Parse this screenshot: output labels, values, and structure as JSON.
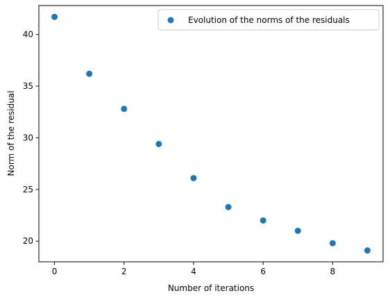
{
  "chart_data": {
    "type": "scatter",
    "xlabel": "Number of iterations",
    "ylabel": "Norm of the residual",
    "xlim": [
      -0.45,
      9.45
    ],
    "ylim": [
      18.0,
      42.8
    ],
    "x_ticks": [
      0,
      2,
      4,
      6,
      8
    ],
    "y_ticks": [
      20,
      25,
      30,
      35,
      40
    ],
    "grid": false,
    "legend_position": "top-right",
    "series": [
      {
        "name": "Evolution of the norms of the residuals",
        "color": "#1f77b4",
        "marker": "circle",
        "x": [
          0,
          1,
          2,
          3,
          4,
          5,
          6,
          7,
          8,
          9
        ],
        "y": [
          41.7,
          36.2,
          32.8,
          29.4,
          26.1,
          23.3,
          22.0,
          21.0,
          19.8,
          19.1
        ]
      }
    ]
  }
}
